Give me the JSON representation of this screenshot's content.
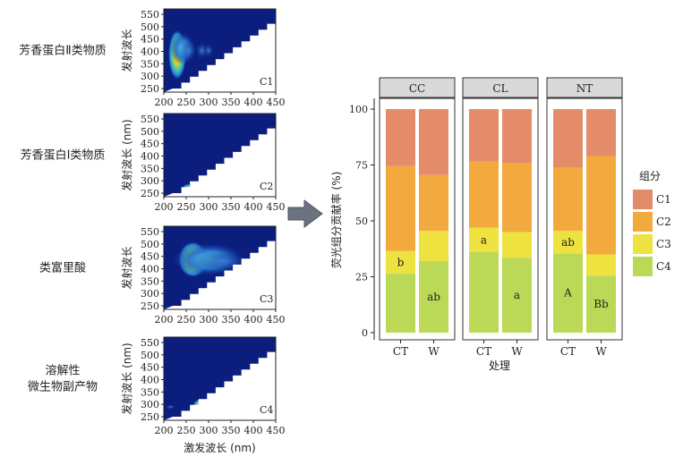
{
  "eem_panels": {
    "x_ticks": [
      "200",
      "250",
      "300",
      "350",
      "400",
      "450"
    ],
    "y_ticks": [
      "250",
      "300",
      "350",
      "400",
      "450",
      "500",
      "550"
    ],
    "y_axis_label": "发射波长 (nm)",
    "y_axis_label_short": "发射波长",
    "x_axis_label": "激发波长 (nm)",
    "items": [
      {
        "id": "C1",
        "label": "芳香蛋白Ⅱ类物质",
        "label_lines": [
          "芳香蛋白Ⅱ类物质"
        ]
      },
      {
        "id": "C2",
        "label": "芳香蛋白Ⅰ类物质",
        "label_lines": [
          "芳香蛋白Ⅰ类物质"
        ]
      },
      {
        "id": "C3",
        "label": "类富里酸",
        "label_lines": [
          "类富里酸"
        ]
      },
      {
        "id": "C4",
        "label": "溶解性微生物副产物",
        "label_lines": [
          "溶解性",
          "微生物副产物"
        ]
      }
    ]
  },
  "chart_data": {
    "type": "bar",
    "stacked": true,
    "title": "",
    "xlabel": "处理",
    "ylabel": "荧光组分贡献率 (%)",
    "ylim": [
      0,
      100
    ],
    "y_ticks": [
      "0",
      "25",
      "50",
      "75",
      "100"
    ],
    "facets": [
      "CC",
      "CL",
      "NT"
    ],
    "categories": [
      "CT",
      "W"
    ],
    "legend_title": "组分",
    "legend_position": "right",
    "series": [
      {
        "name": "C4",
        "color": "#bbd957",
        "values": {
          "CC": [
            26.5,
            32.0
          ],
          "CL": [
            36.0,
            33.5
          ],
          "NT": [
            35.5,
            25.5
          ]
        },
        "labels": {
          "CC": [
            "",
            "ab"
          ],
          "CL": [
            "",
            "a"
          ],
          "NT": [
            "A",
            "Bb"
          ]
        }
      },
      {
        "name": "C3",
        "color": "#ede23f",
        "values": {
          "CC": [
            10.0,
            13.5
          ],
          "CL": [
            11.0,
            11.5
          ],
          "NT": [
            10.0,
            9.5
          ]
        },
        "labels": {
          "CC": [
            "b",
            ""
          ],
          "CL": [
            "a",
            ""
          ],
          "NT": [
            "ab",
            ""
          ]
        }
      },
      {
        "name": "C2",
        "color": "#f2aa3f",
        "values": {
          "CC": [
            38.0,
            25.0
          ],
          "CL": [
            29.5,
            31.0
          ],
          "NT": [
            28.5,
            44.0
          ]
        },
        "labels": {
          "CC": [
            "",
            ""
          ],
          "CL": [
            "",
            ""
          ],
          "NT": [
            "",
            ""
          ]
        }
      },
      {
        "name": "C1",
        "color": "#e48b6a",
        "values": {
          "CC": [
            25.5,
            29.5
          ],
          "CL": [
            23.5,
            24.0
          ],
          "NT": [
            26.0,
            21.0
          ]
        },
        "labels": {
          "CC": [
            "",
            ""
          ],
          "CL": [
            "",
            ""
          ],
          "NT": [
            "",
            ""
          ]
        }
      }
    ]
  }
}
